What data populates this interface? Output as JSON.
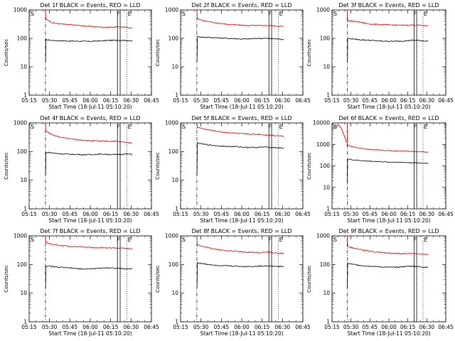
{
  "chart_data": [
    {
      "type": "line",
      "title": "Det 1f BLACK = Events, RED = LLD",
      "xlabel": "Start Time (18-Jul-11 05:10:20)",
      "ylabel": "Counts/sec",
      "yscale": "log",
      "ylim": [
        1,
        1000
      ],
      "y_ticks": [
        "1",
        "10",
        "100",
        "1000"
      ],
      "x_ticks": [
        "05:15",
        "05:30",
        "05:45",
        "06:00",
        "06:15",
        "06:30",
        "06:45"
      ],
      "markers": [
        "S",
        "F",
        "E"
      ],
      "series": [
        {
          "color": "#000000",
          "role": "events",
          "values": [
            90,
            85,
            83,
            82,
            80,
            80,
            79,
            78,
            80,
            82,
            84,
            85,
            86,
            85,
            80
          ]
        },
        {
          "color": "#dd0000",
          "role": "lld",
          "values": [
            480,
            360,
            330,
            310,
            300,
            290,
            275,
            265,
            255,
            250,
            245,
            250,
            255,
            245,
            230
          ]
        }
      ]
    },
    {
      "type": "line",
      "title": "Det 2f BLACK = Events, RED = LLD",
      "xlabel": "Start Time (18-Jul-11 05:10:20)",
      "ylabel": "Counts/sec",
      "yscale": "log",
      "ylim": [
        1,
        1000
      ],
      "y_ticks": [
        "1",
        "10",
        "100",
        "1000"
      ],
      "x_ticks": [
        "05:15",
        "05:30",
        "05:45",
        "06:00",
        "06:15",
        "06:30",
        "06:45"
      ],
      "markers": [
        "S",
        "F",
        "E"
      ],
      "series": [
        {
          "color": "#000000",
          "role": "events",
          "values": [
            115,
            110,
            108,
            105,
            103,
            100,
            98,
            95,
            95,
            97,
            100,
            100,
            98,
            95,
            92
          ]
        },
        {
          "color": "#dd0000",
          "role": "lld",
          "values": [
            500,
            420,
            380,
            350,
            330,
            310,
            300,
            290,
            285,
            285,
            280,
            285,
            280,
            270,
            260
          ]
        }
      ]
    },
    {
      "type": "line",
      "title": "Det 3f BLACK = Events, RED = LLD",
      "xlabel": "Start Time (18-Jul-11 05:10:20)",
      "ylabel": "Counts/sec",
      "yscale": "log",
      "ylim": [
        1,
        1000
      ],
      "y_ticks": [
        "1",
        "10",
        "100",
        "1000"
      ],
      "x_ticks": [
        "05:15",
        "05:30",
        "05:45",
        "06:00",
        "06:15",
        "06:30",
        "06:45"
      ],
      "markers": [
        "S",
        "F",
        "E"
      ],
      "series": [
        {
          "color": "#000000",
          "role": "events",
          "values": [
            100,
            95,
            90,
            88,
            85,
            82,
            80,
            80,
            78,
            80,
            82,
            85,
            85,
            82,
            80
          ]
        },
        {
          "color": "#dd0000",
          "role": "lld",
          "values": [
            420,
            400,
            380,
            340,
            320,
            310,
            300,
            300,
            295,
            290,
            290,
            295,
            290,
            285,
            280
          ]
        }
      ]
    },
    {
      "type": "line",
      "title": "Det 4f BLACK = Events, RED = LLD",
      "xlabel": "Start Time (18-Jul-11 05:10:20)",
      "ylabel": "Counts/sec",
      "yscale": "log",
      "ylim": [
        1,
        1000
      ],
      "y_ticks": [
        "1",
        "10",
        "100",
        "1000"
      ],
      "x_ticks": [
        "05:15",
        "05:30",
        "05:45",
        "06:00",
        "06:15",
        "06:30",
        "06:45"
      ],
      "markers": [
        "S",
        "F",
        "E"
      ],
      "series": [
        {
          "color": "#000000",
          "role": "events",
          "values": [
            95,
            90,
            85,
            82,
            80,
            80,
            78,
            78,
            80,
            82,
            80,
            78,
            80,
            82,
            80
          ]
        },
        {
          "color": "#dd0000",
          "role": "lld",
          "values": [
            520,
            380,
            330,
            300,
            280,
            260,
            250,
            240,
            235,
            230,
            230,
            230,
            220,
            210,
            200
          ]
        }
      ]
    },
    {
      "type": "line",
      "title": "Det 5f BLACK = Events, RED = LLD",
      "xlabel": "Start Time (18-Jul-11 05:10:20)",
      "ylabel": "Counts/sec",
      "yscale": "log",
      "ylim": [
        1,
        1000
      ],
      "y_ticks": [
        "1",
        "10",
        "100",
        "1000"
      ],
      "x_ticks": [
        "05:15",
        "05:30",
        "05:45",
        "06:00",
        "06:15",
        "06:30",
        "06:45"
      ],
      "markers": [
        "S",
        "F",
        "E"
      ],
      "series": [
        {
          "color": "#000000",
          "role": "events",
          "values": [
            200,
            180,
            170,
            160,
            155,
            150,
            150,
            145,
            140,
            140,
            140,
            145,
            140,
            135,
            130
          ]
        },
        {
          "color": "#dd0000",
          "role": "lld",
          "values": [
            700,
            620,
            560,
            520,
            480,
            460,
            440,
            420,
            410,
            400,
            400,
            380,
            370,
            360,
            340
          ]
        }
      ]
    },
    {
      "type": "line",
      "title": "Det 6f BLACK = Events, RED = LLD",
      "xlabel": "Start Time (18-Jul-11 05:10:20)",
      "ylabel": "Counts/sec",
      "yscale": "log",
      "ylim": [
        1,
        10000
      ],
      "y_ticks": [
        "1",
        "10",
        "100",
        "1000",
        "10000"
      ],
      "x_ticks": [
        "05:15",
        "05:30",
        "05:45",
        "06:00",
        "06:15",
        "06:30",
        "06:45"
      ],
      "markers": [
        "S",
        "F",
        "E"
      ],
      "series": [
        {
          "color": "#000000",
          "role": "events",
          "values": [
            210,
            190,
            180,
            170,
            165,
            160,
            155,
            150,
            150,
            148,
            145,
            140,
            138,
            135,
            130
          ]
        },
        {
          "color": "#dd0000",
          "role": "lld",
          "values": [
            900,
            750,
            680,
            620,
            580,
            560,
            540,
            520,
            500,
            490,
            480,
            470,
            460,
            450,
            430
          ]
        }
      ],
      "pre_spike": {
        "color": "#dd0000",
        "values": [
          5000,
          7000,
          8000,
          6000,
          3000,
          1200
        ]
      }
    },
    {
      "type": "line",
      "title": "Det 7f BLACK = Events, RED = LLD",
      "xlabel": "Start Time (18-Jul-11 05:10:20)",
      "ylabel": "Counts/sec",
      "yscale": "log",
      "ylim": [
        1,
        1000
      ],
      "y_ticks": [
        "1",
        "10",
        "100",
        "1000"
      ],
      "x_ticks": [
        "05:15",
        "05:30",
        "05:45",
        "06:00",
        "06:15",
        "06:30",
        "06:45"
      ],
      "markers": [
        "S",
        "F",
        "E"
      ],
      "series": [
        {
          "color": "#000000",
          "role": "events",
          "values": [
            90,
            85,
            80,
            78,
            75,
            72,
            70,
            70,
            72,
            75,
            78,
            75,
            72,
            70,
            72
          ]
        },
        {
          "color": "#dd0000",
          "role": "lld",
          "values": [
            600,
            500,
            470,
            450,
            430,
            420,
            410,
            400,
            390,
            390,
            380,
            380,
            370,
            360,
            350
          ]
        }
      ]
    },
    {
      "type": "line",
      "title": "Det 8f BLACK = Events, RED = LLD",
      "xlabel": "Start Time (18-Jul-11 05:10:20)",
      "ylabel": "Counts/sec",
      "yscale": "log",
      "ylim": [
        1,
        1000
      ],
      "y_ticks": [
        "1",
        "10",
        "100",
        "1000"
      ],
      "x_ticks": [
        "05:15",
        "05:30",
        "05:45",
        "06:00",
        "06:15",
        "06:30",
        "06:45"
      ],
      "markers": [
        "S",
        "F",
        "E"
      ],
      "series": [
        {
          "color": "#000000",
          "role": "events",
          "values": [
            115,
            105,
            100,
            95,
            92,
            90,
            88,
            86,
            85,
            86,
            88,
            90,
            88,
            86,
            85
          ]
        },
        {
          "color": "#dd0000",
          "role": "lld",
          "values": [
            480,
            420,
            380,
            340,
            320,
            300,
            290,
            280,
            270,
            265,
            260,
            270,
            260,
            250,
            240
          ]
        }
      ]
    },
    {
      "type": "line",
      "title": "Det 9f BLACK = Events, RED = LLD",
      "xlabel": "Start Time (18-Jul-11 05:10:20)",
      "ylabel": "Counts/sec",
      "yscale": "log",
      "ylim": [
        1,
        1000
      ],
      "y_ticks": [
        "1",
        "10",
        "100",
        "1000"
      ],
      "x_ticks": [
        "05:15",
        "05:30",
        "05:45",
        "06:00",
        "06:15",
        "06:30",
        "06:45"
      ],
      "markers": [
        "S",
        "F",
        "E"
      ],
      "series": [
        {
          "color": "#000000",
          "role": "events",
          "values": [
            110,
            100,
            95,
            90,
            88,
            85,
            82,
            80,
            80,
            82,
            85,
            88,
            85,
            82,
            80
          ]
        },
        {
          "color": "#dd0000",
          "role": "lld",
          "values": [
            420,
            380,
            340,
            310,
            290,
            270,
            260,
            250,
            245,
            240,
            240,
            245,
            240,
            230,
            220
          ]
        }
      ]
    }
  ]
}
